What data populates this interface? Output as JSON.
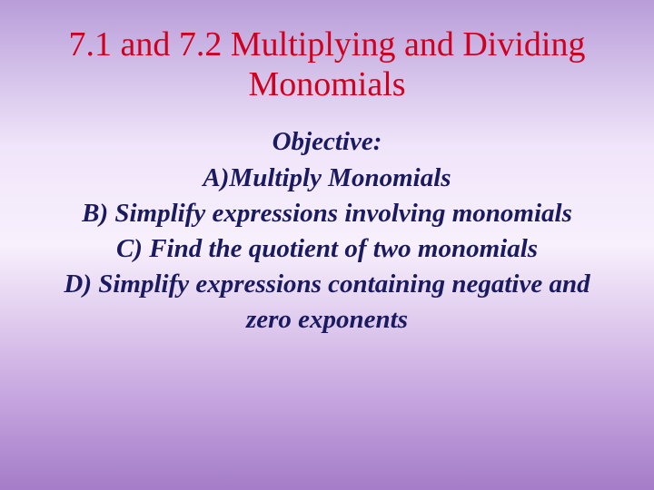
{
  "slide": {
    "title": "7.1 and 7.2 Multiplying and Dividing Monomials",
    "title_color": "#d00020",
    "title_fontsize": 38,
    "body_color": "#1a1a60",
    "body_fontsize": 29,
    "lines": {
      "l0": "Objective:",
      "l1": "A)Multiply Monomials",
      "l2": "B) Simplify expressions involving monomials",
      "l3": "C) Find the quotient of two monomials",
      "l4": "D) Simplify expressions containing negative and zero exponents"
    },
    "background": {
      "gradient_top": "#b89dd9",
      "gradient_mid": "#f8f0fc",
      "gradient_bottom": "#a47cc8"
    }
  }
}
